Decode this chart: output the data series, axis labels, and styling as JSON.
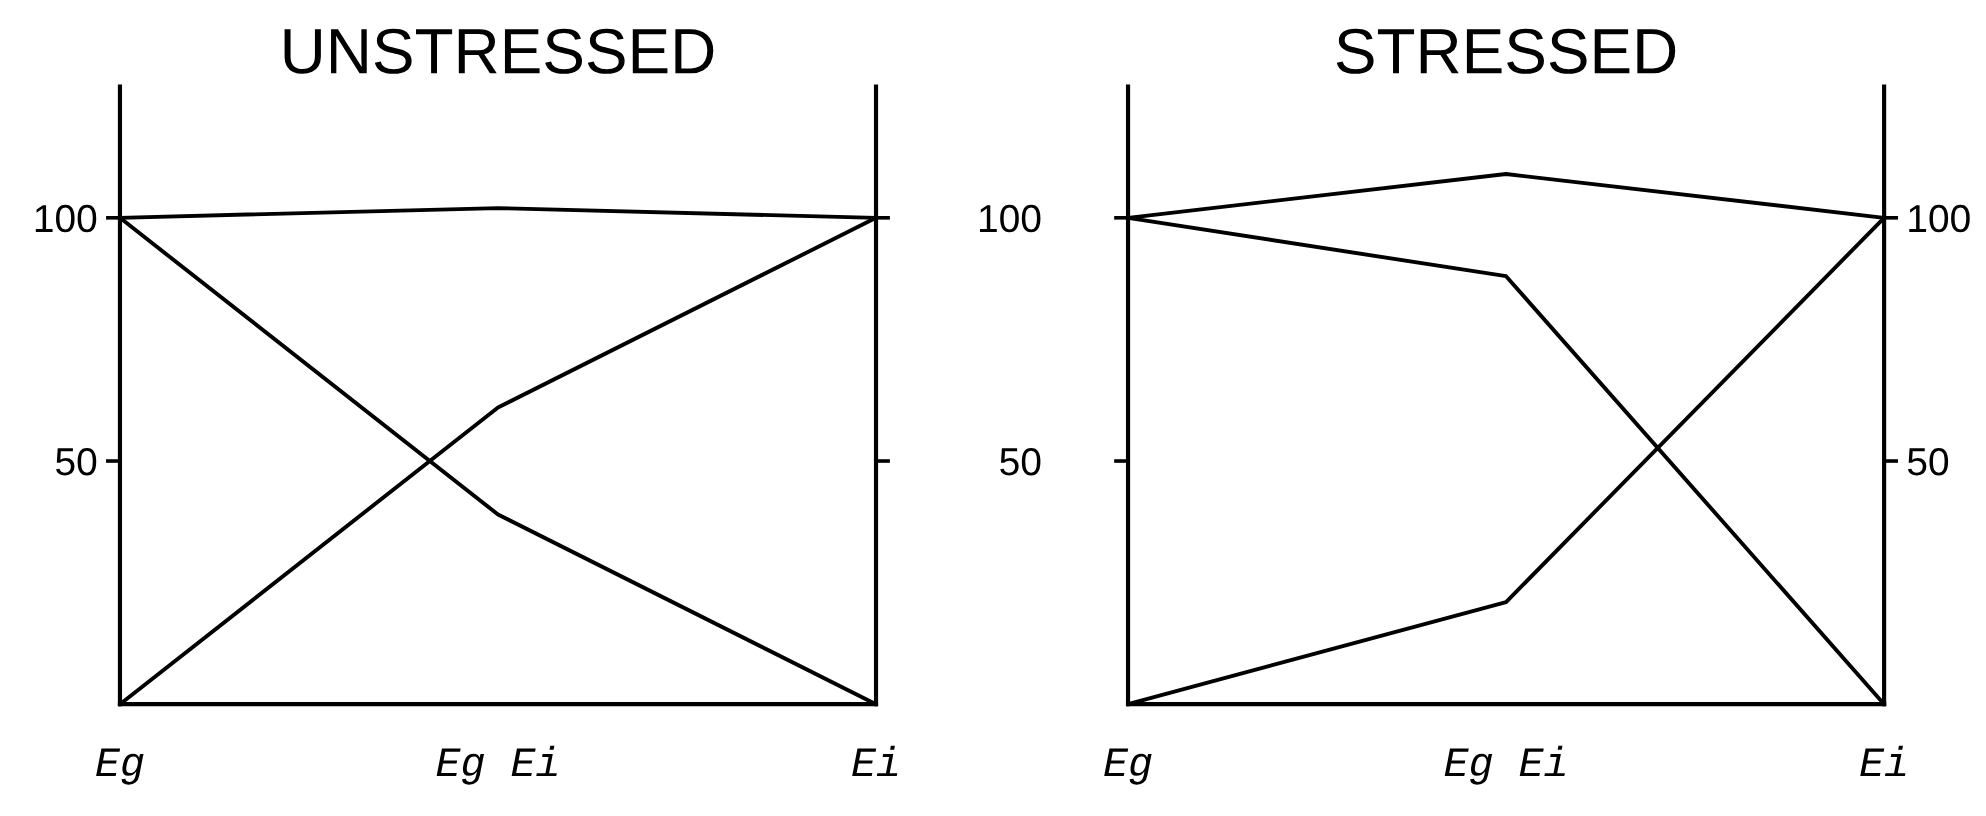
{
  "chart_data": [
    {
      "type": "line",
      "title": "UNSTRESSED",
      "categories": [
        "Eg",
        "Eg Ei",
        "Ei"
      ],
      "series": [
        {
          "color": "#000000",
          "values": [
            100,
            102,
            100
          ]
        },
        {
          "color": "#000000",
          "values": [
            100,
            39,
            0
          ]
        },
        {
          "color": "#000000",
          "values": [
            0,
            61,
            100
          ]
        }
      ],
      "ylim": [
        0,
        127
      ],
      "yticks": [
        50,
        100
      ],
      "line_style": "solid"
    },
    {
      "type": "line",
      "title": "STRESSED",
      "categories": [
        "Eg",
        "Eg Ei",
        "Ei"
      ],
      "series": [
        {
          "color": "#000000",
          "values": [
            100,
            109,
            100
          ]
        },
        {
          "color": "#000000",
          "values": [
            100,
            88,
            0
          ]
        },
        {
          "color": "#000000",
          "values": [
            0,
            21,
            100
          ]
        }
      ],
      "ylim": [
        0,
        127
      ],
      "yticks": [
        50,
        100
      ],
      "y2lim": [
        0,
        127
      ],
      "y2ticks": [
        50,
        100
      ],
      "line_style": "solid"
    }
  ]
}
